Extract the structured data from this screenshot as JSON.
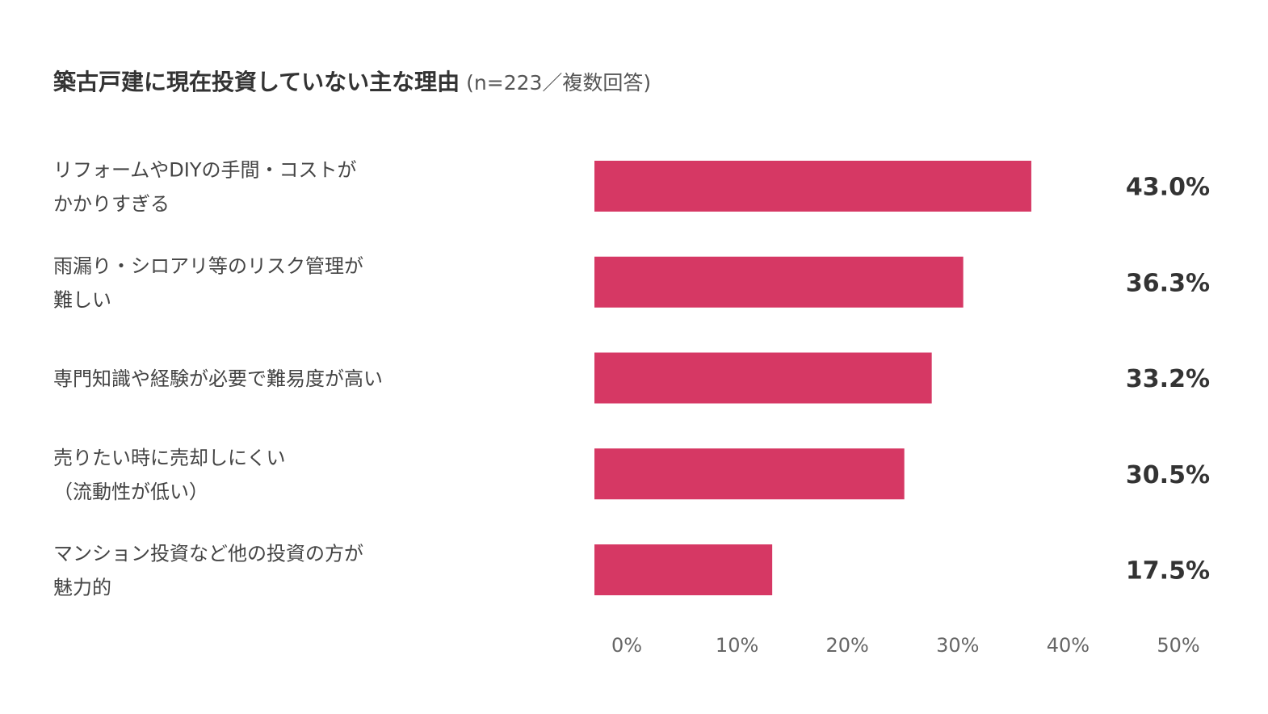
{
  "title": "築古戸建に現在投資していない主な理由",
  "subtitle": "(n=223／複数回答)",
  "colors": {
    "bar": "#d63864",
    "value_text": "#333333",
    "tick_text": "#666666",
    "label_text": "#444444"
  },
  "chart_data": {
    "type": "bar",
    "orientation": "horizontal",
    "categories": [
      [
        "リフォームやDIYの手間・コストが",
        "かかりすぎる"
      ],
      [
        "雨漏り・シロアリ等のリスク管理が",
        "難しい"
      ],
      [
        "専門知識や経験が必要で難易度が高い"
      ],
      [
        "売りたい時に売却しにくい",
        "（流動性が低い）"
      ],
      [
        "マンション投資など他の投資の方が",
        "魅力的"
      ]
    ],
    "values": [
      43.0,
      36.3,
      33.2,
      30.5,
      17.5
    ],
    "value_labels": [
      "43.0%",
      "36.3%",
      "33.2%",
      "30.5%",
      "17.5%"
    ],
    "x_ticks": [
      "0%",
      "10%",
      "20%",
      "30%",
      "40%",
      "50%"
    ],
    "xlim": [
      0,
      50
    ],
    "grid": false,
    "legend": "none"
  }
}
